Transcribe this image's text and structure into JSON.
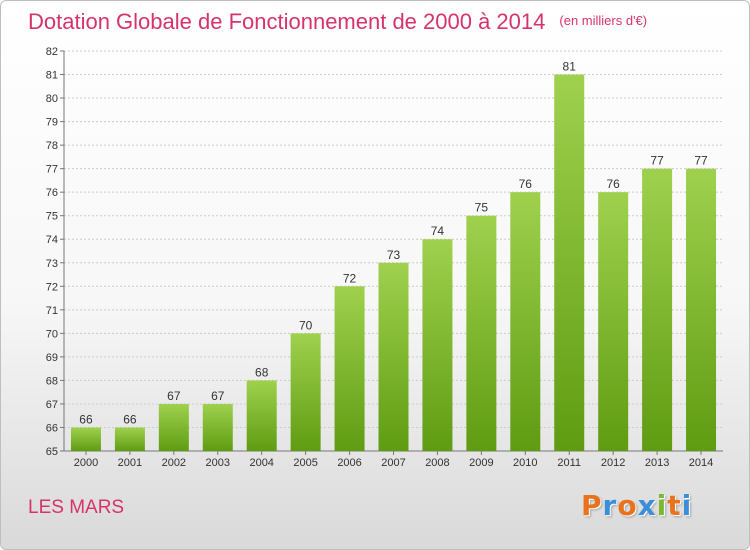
{
  "header": {
    "title": "Dotation Globale de Fonctionnement de 2000 à 2014",
    "unit": "(en milliers d'€)"
  },
  "footer": {
    "commune": "LES MARS",
    "logo": "Proxiti"
  },
  "colors": {
    "bar_light": "#9fd14e",
    "bar_dark": "#5f9c12",
    "title": "#d6336c",
    "logo": [
      "#e8731c",
      "#3a8fd8",
      "#e8731c",
      "#3a8fd8",
      "#7cb82f",
      "#e8731c",
      "#3a8fd8"
    ]
  },
  "chart_data": {
    "type": "bar",
    "title": "Dotation Globale de Fonctionnement de 2000 à 2014",
    "subtitle": "(en milliers d'€)",
    "categories": [
      "2000",
      "2001",
      "2002",
      "2003",
      "2004",
      "2005",
      "2006",
      "2007",
      "2008",
      "2009",
      "2010",
      "2011",
      "2012",
      "2013",
      "2014"
    ],
    "values": [
      66,
      66,
      67,
      67,
      68,
      70,
      72,
      73,
      74,
      75,
      76,
      81,
      76,
      77,
      77
    ],
    "ylim": [
      65,
      82
    ],
    "yticks": [
      65,
      66,
      67,
      68,
      69,
      70,
      71,
      72,
      73,
      74,
      75,
      76,
      77,
      78,
      79,
      80,
      81,
      82
    ],
    "grid": true,
    "legend": "none"
  }
}
